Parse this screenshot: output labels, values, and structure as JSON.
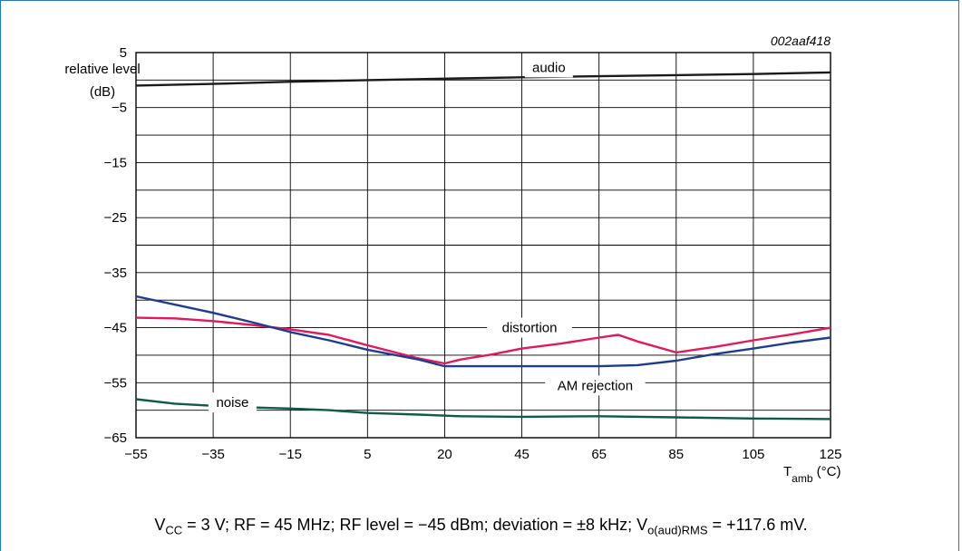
{
  "figure_id": "002aaf418",
  "caption": {
    "parts": [
      {
        "text": "V",
        "sub": "CC"
      },
      {
        "text": " = 3 V; RF = 45 MHz; RF level = −45 dBm; deviation = ±8 kHz; V",
        "sub": "o(aud)RMS"
      },
      {
        "text": " = +117.6 mV.",
        "sub": ""
      }
    ]
  },
  "chart_data": {
    "type": "line",
    "ylabel_line1": "relative level",
    "ylabel_line2": "(dB)",
    "xlabel_main": "T",
    "xlabel_sub": "amb",
    "xlabel_unit": " (°C)",
    "x_ticks": [
      "−55",
      "−35",
      "−15",
      "5",
      "20",
      "45",
      "65",
      "85",
      "105",
      "125"
    ],
    "y_ticks": [
      "5",
      "−5",
      "−15",
      "−25",
      "−35",
      "−45",
      "−55",
      "−65"
    ],
    "ylim": [
      -65,
      5
    ],
    "xlim": [
      -55,
      125
    ],
    "grid": true,
    "series": [
      {
        "name": "audio",
        "color": "#1a1a1a",
        "x": [
          -55,
          -35,
          -15,
          5,
          25,
          45,
          65,
          85,
          105,
          125
        ],
        "y": [
          -1.0,
          -0.7,
          -0.3,
          0.0,
          0.3,
          0.5,
          0.7,
          0.9,
          1.1,
          1.4
        ]
      },
      {
        "name": "distortion",
        "color": "#e2195a",
        "x": [
          -55,
          -45,
          -35,
          -25,
          -15,
          -5,
          5,
          15,
          20,
          25,
          35,
          45,
          55,
          65,
          70,
          75,
          85,
          95,
          105,
          115,
          125
        ],
        "y": [
          -43.2,
          -43.3,
          -43.8,
          -44.5,
          -45.3,
          -46.3,
          -48.2,
          -50.6,
          -51.5,
          -50.8,
          -49.9,
          -48.8,
          -47.9,
          -46.8,
          -46.3,
          -47.5,
          -49.5,
          -48.5,
          -47.3,
          -46.2,
          -45.0
        ]
      },
      {
        "name": "AM rejection",
        "color": "#1e3d8f",
        "x": [
          -55,
          -45,
          -35,
          -25,
          -15,
          -5,
          5,
          15,
          20,
          25,
          35,
          45,
          55,
          65,
          75,
          85,
          95,
          105,
          115,
          125
        ],
        "y": [
          -39.3,
          -40.8,
          -42.3,
          -44.0,
          -45.8,
          -47.3,
          -49.0,
          -50.8,
          -52.0,
          -52.0,
          -52.0,
          -52.0,
          -52.0,
          -52.0,
          -51.8,
          -51.0,
          -49.8,
          -48.8,
          -47.7,
          -46.8
        ]
      },
      {
        "name": "noise",
        "color": "#0f5a48",
        "x": [
          -55,
          -45,
          -35,
          -25,
          -15,
          -5,
          5,
          15,
          25,
          45,
          65,
          85,
          105,
          125
        ],
        "y": [
          -58.0,
          -58.8,
          -59.2,
          -59.5,
          -59.7,
          -60.0,
          -60.5,
          -60.8,
          -61.1,
          -61.2,
          -61.1,
          -61.3,
          -61.5,
          -61.6
        ]
      }
    ],
    "annotations": [
      "audio",
      "distortion",
      "AM rejection",
      "noise"
    ]
  }
}
